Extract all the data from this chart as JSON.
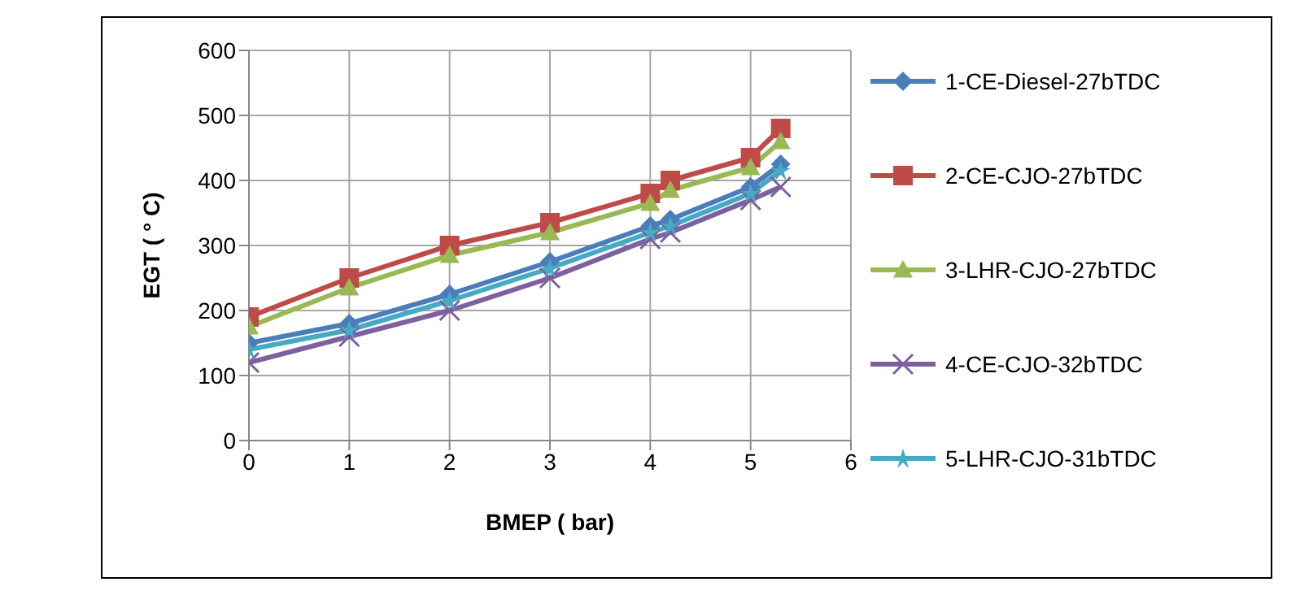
{
  "chart_data": {
    "type": "line",
    "xlabel": "BMEP ( bar)",
    "ylabel": "EGT ( ° C)",
    "xlim": [
      0,
      6
    ],
    "xticks": [
      0,
      1,
      2,
      3,
      4,
      5,
      6
    ],
    "ylim": [
      0,
      600
    ],
    "yticks": [
      0,
      100,
      200,
      300,
      400,
      500,
      600
    ],
    "grid": true,
    "legend": "right",
    "x": [
      0,
      1,
      2,
      3,
      4,
      4.2,
      5,
      5.3
    ],
    "series": [
      {
        "name": "1-CE-Diesel-27bTDC",
        "color": "#4a7ebb",
        "marker": "diamond",
        "values": [
          150,
          180,
          225,
          275,
          330,
          340,
          390,
          425
        ]
      },
      {
        "name": "2-CE-CJO-27bTDC",
        "color": "#be4b48",
        "marker": "square",
        "values": [
          190,
          250,
          300,
          335,
          380,
          400,
          435,
          480
        ]
      },
      {
        "name": "3-LHR-CJO-27bTDC",
        "color": "#98b954",
        "marker": "triangle",
        "values": [
          175,
          235,
          285,
          320,
          365,
          385,
          420,
          460
        ]
      },
      {
        "name": "4-CE-CJO-32bTDC",
        "color": "#7d60a0",
        "marker": "cross",
        "values": [
          120,
          160,
          200,
          250,
          310,
          320,
          370,
          390
        ]
      },
      {
        "name": "5-LHR-CJO-31bTDC",
        "color": "#46aac5",
        "marker": "star",
        "values": [
          140,
          170,
          215,
          265,
          320,
          330,
          380,
          415
        ]
      }
    ]
  }
}
